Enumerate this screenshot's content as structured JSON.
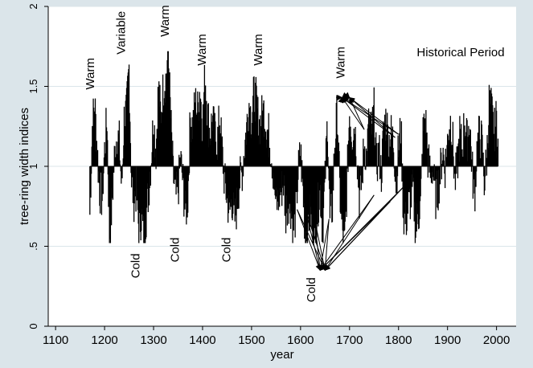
{
  "chart_data": {
    "type": "bar",
    "title": "",
    "xlabel": "year",
    "ylabel": "tree-ring width indices",
    "xlim": [
      1085,
      2040
    ],
    "ylim": [
      0,
      2
    ],
    "baseline": 1,
    "x_ticks": [
      1100,
      1200,
      1300,
      1400,
      1500,
      1600,
      1700,
      1800,
      1900,
      2000
    ],
    "y_ticks": [
      {
        "value": 0,
        "label": "0"
      },
      {
        "value": 0.5,
        "label": ".5"
      },
      {
        "value": 1,
        "label": "1"
      },
      {
        "value": 1.5,
        "label": "1.5"
      },
      {
        "value": 2,
        "label": "2"
      }
    ],
    "grid": true,
    "legend": "none",
    "colors": {
      "background": "#dbe5ea",
      "plot_area": "#ffffff",
      "bars": "#000000",
      "grid": "#dbe5ea"
    },
    "series_start_year": 1170,
    "series_end_year": 2003,
    "series_anchor_years": [
      1170,
      1175,
      1180,
      1185,
      1190,
      1195,
      1200,
      1205,
      1210,
      1215,
      1220,
      1225,
      1230,
      1235,
      1240,
      1245,
      1250,
      1255,
      1260,
      1265,
      1270,
      1275,
      1280,
      1285,
      1290,
      1295,
      1300,
      1305,
      1310,
      1315,
      1320,
      1325,
      1330,
      1335,
      1340,
      1345,
      1350,
      1355,
      1360,
      1365,
      1370,
      1375,
      1380,
      1385,
      1390,
      1395,
      1400,
      1405,
      1410,
      1415,
      1420,
      1425,
      1430,
      1435,
      1440,
      1445,
      1450,
      1455,
      1460,
      1465,
      1470,
      1475,
      1480,
      1485,
      1490,
      1495,
      1500,
      1505,
      1510,
      1515,
      1520,
      1525,
      1530,
      1535,
      1540,
      1545,
      1550,
      1555,
      1560,
      1565,
      1570,
      1575,
      1580,
      1585,
      1590,
      1595,
      1600,
      1605,
      1610,
      1615,
      1620,
      1625,
      1630,
      1635,
      1640,
      1645,
      1650,
      1655,
      1660,
      1665,
      1670,
      1675,
      1680,
      1685,
      1690,
      1695,
      1700,
      1705,
      1710,
      1715,
      1720,
      1725,
      1730,
      1735,
      1740,
      1745,
      1750,
      1755,
      1760,
      1765,
      1770,
      1775,
      1780,
      1785,
      1790,
      1795,
      1800,
      1805,
      1810,
      1815,
      1820,
      1825,
      1830,
      1835,
      1840,
      1845,
      1850,
      1855,
      1860,
      1865,
      1870,
      1875,
      1880,
      1885,
      1890,
      1895,
      1900,
      1905,
      1910,
      1915,
      1920,
      1925,
      1930,
      1935,
      1940,
      1945,
      1950,
      1955,
      1960,
      1965,
      1970,
      1975,
      1980,
      1985,
      1990,
      1995,
      2000,
      2003
    ],
    "series_anchor_values": [
      0.7,
      1.25,
      1.4,
      1.1,
      0.85,
      0.8,
      1.1,
      1.3,
      0.55,
      0.75,
      1.05,
      1.2,
      1.15,
      0.85,
      1.3,
      1.35,
      1.62,
      0.9,
      0.8,
      0.85,
      0.6,
      0.7,
      0.55,
      0.7,
      0.85,
      1.05,
      1.3,
      1.1,
      1.5,
      1.3,
      1.5,
      1.55,
      1.72,
      1.3,
      0.95,
      0.8,
      0.85,
      1.05,
      0.9,
      0.7,
      0.8,
      1.3,
      1.25,
      1.4,
      1.35,
      1.5,
      1.25,
      1.58,
      1.35,
      1.2,
      1.3,
      1.2,
      1.15,
      1.3,
      1.1,
      0.9,
      0.8,
      0.7,
      0.8,
      0.65,
      0.75,
      0.9,
      0.95,
      1.1,
      1.25,
      1.4,
      1.3,
      1.45,
      1.4,
      1.25,
      1.3,
      1.35,
      1.25,
      1.2,
      1.1,
      0.95,
      0.75,
      0.8,
      0.85,
      0.9,
      0.7,
      0.8,
      0.75,
      0.6,
      0.7,
      0.95,
      1.1,
      0.85,
      0.55,
      0.65,
      0.7,
      0.6,
      0.5,
      0.75,
      0.85,
      0.6,
      0.9,
      1.3,
      0.65,
      0.75,
      1.15,
      1.35,
      0.85,
      0.6,
      0.5,
      0.9,
      1.35,
      1.2,
      1.25,
      1.1,
      0.8,
      0.9,
      1.15,
      1.05,
      1.3,
      1.2,
      1.35,
      1.0,
      1.1,
      0.95,
      1.25,
      1.3,
      1.15,
      1.2,
      1.15,
      0.9,
      1.1,
      1.25,
      0.7,
      0.65,
      0.75,
      0.8,
      0.85,
      0.6,
      0.7,
      0.75,
      1.2,
      1.3,
      1.05,
      0.95,
      1.0,
      0.8,
      0.85,
      0.95,
      1.1,
      1.0,
      1.15,
      1.3,
      1.2,
      0.9,
      1.0,
      1.2,
      1.1,
      1.3,
      1.15,
      1.3,
      1.0,
      0.8,
      1.1,
      1.2,
      1.15,
      0.9,
      1.05,
      1.4,
      1.35,
      1.2,
      1.3,
      1.15,
      1.25,
      1.2,
      1.25
    ],
    "annotations": [
      {
        "text": "Warm",
        "x": 1172,
        "y": 1.48
      },
      {
        "text": "Variable",
        "x": 1235,
        "y": 1.7
      },
      {
        "text": "Warm",
        "x": 1325,
        "y": 1.81
      },
      {
        "text": "Warm",
        "x": 1400,
        "y": 1.63
      },
      {
        "text": "Warm",
        "x": 1515,
        "y": 1.63
      },
      {
        "text": "Warm",
        "x": 1683,
        "y": 1.55
      },
      {
        "text": "Cold",
        "x": 1265,
        "y": 0.3
      },
      {
        "text": "Cold",
        "x": 1345,
        "y": 0.4
      },
      {
        "text": "Cold",
        "x": 1450,
        "y": 0.4
      },
      {
        "text": "Cold",
        "x": 1623,
        "y": 0.15
      }
    ],
    "corner_label": "Historical Period",
    "arrow_targets_upper": [
      1685,
      1700
    ],
    "arrow_targets_lower": [
      1640,
      1650
    ],
    "arrow_sources": [
      {
        "x": 1593,
        "y": 0.73
      },
      {
        "x": 1608,
        "y": 0.75
      },
      {
        "x": 1628,
        "y": 0.68
      },
      {
        "x": 1658,
        "y": 0.67
      },
      {
        "x": 1673,
        "y": 1.43
      },
      {
        "x": 1683,
        "y": 1.41
      },
      {
        "x": 1693,
        "y": 1.45
      },
      {
        "x": 1708,
        "y": 1.4
      },
      {
        "x": 1750,
        "y": 0.82
      },
      {
        "x": 1783,
        "y": 0.78
      },
      {
        "x": 1813,
        "y": 0.88
      },
      {
        "x": 1730,
        "y": 1.23
      },
      {
        "x": 1793,
        "y": 1.18
      },
      {
        "x": 1800,
        "y": 1.2
      }
    ]
  }
}
